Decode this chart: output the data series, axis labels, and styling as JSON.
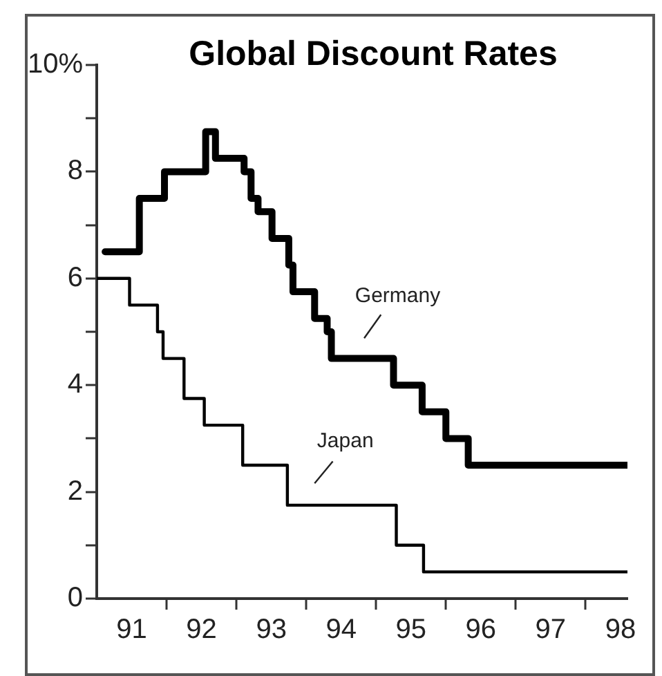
{
  "chart_data": {
    "type": "step",
    "title": "Global Discount Rates",
    "series": [
      {
        "name": "Germany",
        "color": "#000000",
        "x": [
          90.62,
          91.11,
          91.47,
          92.06,
          92.2,
          92.61,
          92.71,
          92.81,
          93.01,
          93.25,
          93.31,
          93.62,
          93.8,
          93.86,
          94.75,
          95.16,
          95.5,
          95.82,
          98.09
        ],
        "values": [
          6.5,
          7.5,
          8.0,
          8.75,
          8.25,
          8.0,
          7.5,
          7.25,
          6.75,
          6.25,
          5.75,
          5.25,
          5.0,
          4.5,
          4.0,
          3.5,
          3.0,
          2.5,
          2.5
        ]
      },
      {
        "name": "Japan",
        "color": "#000000",
        "x": [
          90.5,
          90.97,
          91.37,
          91.45,
          91.75,
          92.04,
          92.59,
          93.23,
          94.79,
          95.18,
          98.09
        ],
        "values": [
          6.0,
          5.5,
          5.0,
          4.5,
          3.75,
          3.25,
          2.5,
          1.75,
          1.0,
          0.5,
          0.5
        ]
      }
    ],
    "xlim": [
      90.5,
      98.1
    ],
    "xticks": [
      91,
      {
        "value": 91.5,
        "label": null
      },
      92,
      {
        "value": 92.5,
        "label": null
      },
      93,
      {
        "value": 93.5,
        "label": null
      },
      94,
      {
        "value": 94.5,
        "label": null
      },
      95,
      {
        "value": 95.5,
        "label": null
      },
      96,
      {
        "value": 96.5,
        "label": null
      },
      97,
      {
        "value": 97.5,
        "label": null
      },
      98
    ],
    "ylim": [
      0,
      10
    ],
    "yticks": [
      0,
      {
        "value": 1,
        "label": null
      },
      2,
      {
        "value": 3,
        "label": null
      },
      4,
      {
        "value": 5,
        "label": null
      },
      6,
      {
        "value": 7,
        "label": null
      },
      8,
      {
        "value": 9,
        "label": null
      },
      {
        "value": 10,
        "label": "10%"
      }
    ],
    "grid": false,
    "legend": false
  }
}
